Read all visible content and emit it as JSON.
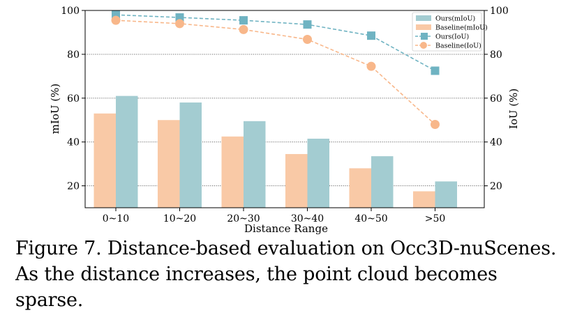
{
  "chart_data": {
    "type": "bar+line",
    "categories": [
      "0~10",
      "10~20",
      "20~30",
      "30~40",
      "40~50",
      ">50"
    ],
    "xlabel": "Distance Range",
    "ylabel_left": "mIoU (%)",
    "ylabel_right": "IoU (%)",
    "ylim": [
      10,
      100
    ],
    "yticks": [
      20,
      40,
      60,
      80,
      100
    ],
    "grid": "horizontal dotted",
    "legend_position": "top-right",
    "bar_series": [
      {
        "name": "Baseline(mIoU)",
        "color": "#f9c9a6",
        "values": [
          53,
          50,
          42.5,
          34.5,
          28,
          17.5
        ]
      },
      {
        "name": "Ours(mIoU)",
        "color": "#a3ccd1",
        "values": [
          61,
          58,
          49.5,
          41.5,
          33.5,
          22
        ]
      }
    ],
    "line_series": [
      {
        "name": "Ours(IoU)",
        "color": "#6fb3c2",
        "marker": "square",
        "values": [
          98,
          96.8,
          95.5,
          93.6,
          88.5,
          72.5
        ]
      },
      {
        "name": "Baseline(IoU)",
        "color": "#f8b78a",
        "marker": "circle",
        "values": [
          95.5,
          94,
          91.3,
          86.8,
          74.5,
          48
        ]
      }
    ],
    "legend": [
      "Ours(mIoU)",
      "Baseline(mIoU)",
      "Ours(IoU)",
      "Baseline(IoU)"
    ]
  },
  "caption": "Figure 7. Distance-based evaluation on Occ3D-nuScenes. As the distance increases, the point cloud becomes sparse."
}
